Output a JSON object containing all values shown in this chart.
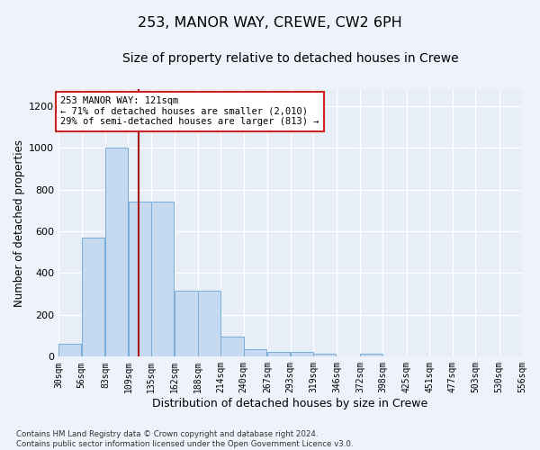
{
  "title": "253, MANOR WAY, CREWE, CW2 6PH",
  "subtitle": "Size of property relative to detached houses in Crewe",
  "xlabel": "Distribution of detached houses by size in Crewe",
  "ylabel": "Number of detached properties",
  "bar_color": "#c5d9f0",
  "bar_edge_color": "#7aadda",
  "bg_color": "#e8eef8",
  "fig_color": "#eef2fa",
  "grid_color": "#ffffff",
  "vline_color": "#aa1111",
  "vline_x": 121,
  "annotation_text": "253 MANOR WAY: 121sqm\n← 71% of detached houses are smaller (2,010)\n29% of semi-detached houses are larger (813) →",
  "ann_fc": "#ffffff",
  "ann_ec": "#cc2222",
  "bins": [
    30,
    56,
    83,
    109,
    135,
    162,
    188,
    214,
    240,
    267,
    293,
    319,
    346,
    372,
    398,
    425,
    451,
    477,
    503,
    530,
    556
  ],
  "values": [
    60,
    570,
    1000,
    740,
    740,
    315,
    315,
    95,
    35,
    25,
    25,
    15,
    0,
    15,
    0,
    0,
    0,
    0,
    0,
    0
  ],
  "ylim": [
    0,
    1280
  ],
  "yticks": [
    0,
    200,
    400,
    600,
    800,
    1000,
    1200
  ],
  "footer": "Contains HM Land Registry data © Crown copyright and database right 2024.\nContains public sector information licensed under the Open Government Licence v3.0."
}
